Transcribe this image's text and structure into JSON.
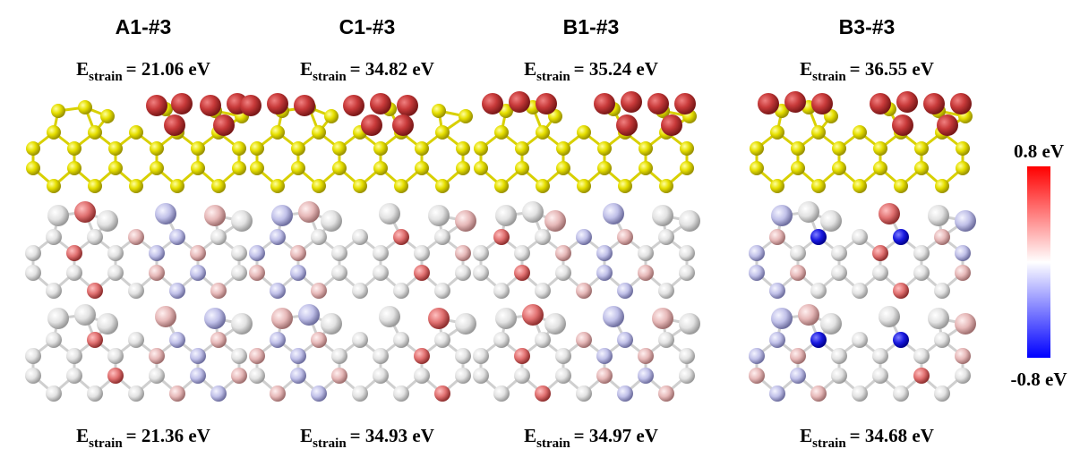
{
  "panels": [
    {
      "title": "A1-#3",
      "top": {
        "symbol": "E",
        "subscript": "strain",
        "value": "= 21.06 eV"
      },
      "bottom": {
        "symbol": "E",
        "subscript": "strain",
        "value": "= 21.36 eV"
      }
    },
    {
      "title": "C1-#3",
      "top": {
        "symbol": "E",
        "subscript": "strain",
        "value": "= 34.82 eV"
      },
      "bottom": {
        "symbol": "E",
        "subscript": "strain",
        "value": "= 34.93 eV"
      }
    },
    {
      "title": "B1-#3",
      "top": {
        "symbol": "E",
        "subscript": "strain",
        "value": "= 35.24 eV"
      },
      "bottom": {
        "symbol": "E",
        "subscript": "strain",
        "value": "= 34.97 eV"
      }
    },
    {
      "title": "B3-#3",
      "top": {
        "symbol": "E",
        "subscript": "strain",
        "value": "= 36.55 eV"
      },
      "bottom": {
        "symbol": "E",
        "subscript": "strain",
        "value": "= 34.68 eV"
      }
    }
  ],
  "colorbar": {
    "max_label": "0.8 eV",
    "min_label": "-0.8 eV"
  }
}
